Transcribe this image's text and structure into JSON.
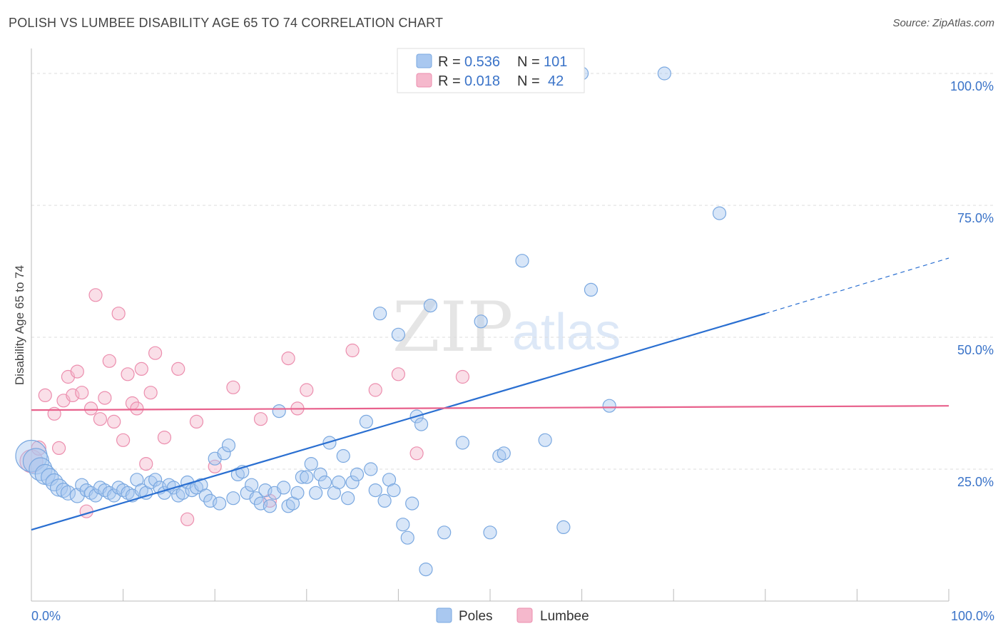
{
  "title": "POLISH VS LUMBEE DISABILITY AGE 65 TO 74 CORRELATION CHART",
  "source": "Source: ZipAtlas.com",
  "watermark": {
    "zip": "ZIP",
    "atlas": "atlas"
  },
  "colors": {
    "poles_fill": "#a9c8f0",
    "poles_stroke": "#7aa8e0",
    "poles_line": "#2a6fd1",
    "lumbee_fill": "#f5b8cc",
    "lumbee_stroke": "#ec8eae",
    "lumbee_line": "#e8618c",
    "tick_label": "#3a73c8"
  },
  "legend_top": {
    "rows": [
      {
        "r_label": "R = ",
        "r_value": "0.536",
        "n_label": "N = ",
        "n_value": "101"
      },
      {
        "r_label": "R = ",
        "r_value": "0.018",
        "n_label": "N = ",
        "n_value": "42"
      }
    ]
  },
  "chart_data": {
    "type": "scatter",
    "title": "POLISH VS LUMBEE DISABILITY AGE 65 TO 74 CORRELATION CHART",
    "xlabel": "",
    "ylabel": "Disability Age 65 to 74",
    "xlim": [
      0,
      100
    ],
    "ylim": [
      0,
      105
    ],
    "x_tick_labels": [
      "0.0%",
      "100.0%"
    ],
    "y_ticks": [
      25,
      50,
      75,
      100
    ],
    "y_tick_labels": [
      "25.0%",
      "50.0%",
      "75.0%",
      "100.0%"
    ],
    "grid": true,
    "legend": [
      "Poles",
      "Lumbee"
    ],
    "series": [
      {
        "name": "Poles",
        "r": 0.536,
        "n": 101,
        "trend": {
          "x0": 0,
          "y0": 13.5,
          "x1": 80,
          "y1": 54.5,
          "dashed_to_x": 100,
          "dashed_to_y": 65
        },
        "points": [
          [
            0,
            27.5,
            22
          ],
          [
            0.5,
            26.5,
            18
          ],
          [
            1,
            25,
            16
          ],
          [
            1.5,
            24,
            14
          ],
          [
            2,
            23.5,
            12
          ],
          [
            2.5,
            22.5,
            12
          ],
          [
            3,
            21.5,
            12
          ],
          [
            3.5,
            21,
            10
          ],
          [
            4,
            20.5,
            10
          ],
          [
            5,
            20,
            10
          ],
          [
            5.5,
            22,
            9
          ],
          [
            6,
            21,
            9
          ],
          [
            6.5,
            20.5,
            9
          ],
          [
            7,
            20,
            9
          ],
          [
            7.5,
            21.5,
            9
          ],
          [
            8,
            21,
            9
          ],
          [
            8.5,
            20.5,
            9
          ],
          [
            9,
            20,
            9
          ],
          [
            9.5,
            21.5,
            9
          ],
          [
            10,
            21,
            9
          ],
          [
            10.5,
            20.5,
            9
          ],
          [
            11,
            20,
            9
          ],
          [
            11.5,
            23,
            9
          ],
          [
            12,
            21,
            9
          ],
          [
            12.5,
            20.5,
            9
          ],
          [
            13,
            22.5,
            9
          ],
          [
            13.5,
            23,
            9
          ],
          [
            14,
            21.5,
            9
          ],
          [
            14.5,
            20.5,
            9
          ],
          [
            15,
            22,
            9
          ],
          [
            15.5,
            21.5,
            9
          ],
          [
            16,
            20,
            9
          ],
          [
            16.5,
            20.5,
            9
          ],
          [
            17,
            22.5,
            9
          ],
          [
            17.5,
            21,
            9
          ],
          [
            18,
            21.5,
            9
          ],
          [
            18.5,
            22,
            9
          ],
          [
            19,
            20,
            9
          ],
          [
            19.5,
            19,
            9
          ],
          [
            20,
            27,
            9
          ],
          [
            20.5,
            18.5,
            9
          ],
          [
            21,
            28,
            9
          ],
          [
            21.5,
            29.5,
            9
          ],
          [
            22,
            19.5,
            9
          ],
          [
            22.5,
            24,
            9
          ],
          [
            23,
            24.5,
            9
          ],
          [
            23.5,
            20.5,
            9
          ],
          [
            24,
            22,
            9
          ],
          [
            24.5,
            19.5,
            9
          ],
          [
            25,
            18.5,
            9
          ],
          [
            25.5,
            21,
            9
          ],
          [
            26,
            18,
            9
          ],
          [
            26.5,
            20.5,
            9
          ],
          [
            27,
            36,
            9
          ],
          [
            27.5,
            21.5,
            9
          ],
          [
            28,
            18,
            9
          ],
          [
            28.5,
            18.5,
            9
          ],
          [
            29,
            20.5,
            9
          ],
          [
            29.5,
            23.5,
            9
          ],
          [
            30,
            23.5,
            9
          ],
          [
            30.5,
            26,
            9
          ],
          [
            31,
            20.5,
            9
          ],
          [
            31.5,
            24,
            9
          ],
          [
            32,
            22.5,
            9
          ],
          [
            32.5,
            30,
            9
          ],
          [
            33,
            20.5,
            9
          ],
          [
            33.5,
            22.5,
            9
          ],
          [
            34,
            27.5,
            9
          ],
          [
            34.5,
            19.5,
            9
          ],
          [
            35,
            22.5,
            9
          ],
          [
            35.5,
            24,
            9
          ],
          [
            36.5,
            34,
            9
          ],
          [
            37,
            25,
            9
          ],
          [
            37.5,
            21,
            9
          ],
          [
            38,
            54.5,
            9
          ],
          [
            38.5,
            19,
            9
          ],
          [
            39,
            23,
            9
          ],
          [
            39.5,
            21,
            9
          ],
          [
            40,
            50.5,
            9
          ],
          [
            40.5,
            14.5,
            9
          ],
          [
            41,
            12,
            9
          ],
          [
            41.5,
            18.5,
            9
          ],
          [
            42,
            35,
            9
          ],
          [
            42.5,
            33.5,
            9
          ],
          [
            43,
            6,
            9
          ],
          [
            43.5,
            56,
            9
          ],
          [
            45,
            13,
            9
          ],
          [
            47,
            30,
            9
          ],
          [
            49,
            53,
            9
          ],
          [
            50,
            13,
            9
          ],
          [
            51,
            27.5,
            9
          ],
          [
            51.5,
            28,
            9
          ],
          [
            53,
            100,
            9
          ],
          [
            53.5,
            64.5,
            9
          ],
          [
            56,
            30.5,
            9
          ],
          [
            58,
            14,
            9
          ],
          [
            60,
            100,
            9
          ],
          [
            61,
            59,
            9
          ],
          [
            63,
            37,
            9
          ],
          [
            69,
            100,
            9
          ],
          [
            75,
            73.5,
            9
          ]
        ]
      },
      {
        "name": "Lumbee",
        "r": 0.018,
        "n": 42,
        "trend": {
          "x0": 0,
          "y0": 36.2,
          "x1": 100,
          "y1": 37
        },
        "points": [
          [
            0,
            26.5,
            16
          ],
          [
            0.8,
            29,
            10
          ],
          [
            1.5,
            39,
            9
          ],
          [
            2.5,
            35.5,
            9
          ],
          [
            3,
            29,
            9
          ],
          [
            3.5,
            38,
            9
          ],
          [
            4,
            42.5,
            9
          ],
          [
            4.5,
            39,
            9
          ],
          [
            5,
            43.5,
            9
          ],
          [
            5.5,
            39.5,
            9
          ],
          [
            6,
            17,
            9
          ],
          [
            6.5,
            36.5,
            9
          ],
          [
            7,
            58,
            9
          ],
          [
            7.5,
            34.5,
            9
          ],
          [
            8,
            38.5,
            9
          ],
          [
            8.5,
            45.5,
            9
          ],
          [
            9,
            34,
            9
          ],
          [
            9.5,
            54.5,
            9
          ],
          [
            10,
            30.5,
            9
          ],
          [
            10.5,
            43,
            9
          ],
          [
            11,
            37.5,
            9
          ],
          [
            11.5,
            36.5,
            9
          ],
          [
            12,
            44,
            9
          ],
          [
            12.5,
            26,
            9
          ],
          [
            13,
            39.5,
            9
          ],
          [
            13.5,
            47,
            9
          ],
          [
            14.5,
            31,
            9
          ],
          [
            16,
            44,
            9
          ],
          [
            17,
            15.5,
            9
          ],
          [
            18,
            34,
            9
          ],
          [
            20,
            25.5,
            9
          ],
          [
            22,
            40.5,
            9
          ],
          [
            25,
            34.5,
            9
          ],
          [
            26,
            19,
            9
          ],
          [
            28,
            46,
            9
          ],
          [
            29,
            36.5,
            9
          ],
          [
            30,
            40,
            9
          ],
          [
            35,
            47.5,
            9
          ],
          [
            37.5,
            40,
            9
          ],
          [
            40,
            43,
            9
          ],
          [
            42,
            28,
            9
          ],
          [
            47,
            42.5,
            9
          ]
        ]
      }
    ]
  },
  "bottom_legend": {
    "poles": "Poles",
    "lumbee": "Lumbee"
  }
}
